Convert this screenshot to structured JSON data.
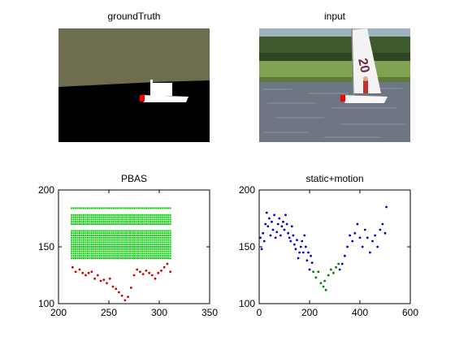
{
  "figure": {
    "panel_titles": [
      "groundTruth",
      "input",
      "PBAS",
      "static+motion"
    ]
  },
  "images": {
    "groundTruth": {
      "colors": {
        "sky": "#6e6d4f",
        "water": "#000000",
        "boat": "#ffffff",
        "marker": "#ff0000"
      }
    },
    "input": {
      "sail_text": "20",
      "colors": {
        "sky": "#9fb2c0",
        "trees": "#3e5a2c",
        "grass": "#7fa250",
        "water": "#6f7683",
        "marker": "#ff0000"
      }
    }
  },
  "chart_data": [
    {
      "type": "scatter",
      "title": "PBAS",
      "xlabel": "",
      "ylabel": "",
      "xlim": [
        200,
        350
      ],
      "ylim": [
        100,
        200
      ],
      "x_ticks": [
        200,
        250,
        300,
        350
      ],
      "y_ticks": [
        100,
        150,
        200
      ],
      "x_tick_labels": [
        "200",
        "250",
        "300",
        "350"
      ],
      "y_tick_labels": [
        "100",
        "150",
        "200"
      ],
      "grid": false,
      "colors": {
        "green": "#00d000",
        "red": "#d00000"
      },
      "band": {
        "x_from": 213,
        "x_to": 311,
        "x_step": 2,
        "y_rows": [
          140,
          142,
          144,
          146,
          148,
          150,
          152,
          154,
          156,
          158,
          160,
          162,
          164,
          170,
          172,
          174,
          176,
          178,
          184
        ]
      },
      "series": [
        {
          "color": "red",
          "x": [
            214,
            217,
            221,
            224,
            227,
            230,
            233,
            236,
            239,
            242,
            245,
            248,
            251,
            254,
            257,
            260,
            263,
            266,
            269,
            272,
            275,
            278,
            281,
            284,
            287,
            290,
            293,
            296,
            299,
            302,
            305,
            308,
            311
          ],
          "y": [
            132,
            128,
            130,
            127,
            125,
            127,
            128,
            122,
            125,
            120,
            121,
            118,
            122,
            115,
            113,
            110,
            107,
            103,
            106,
            114,
            125,
            130,
            128,
            126,
            129,
            127,
            125,
            122,
            127,
            129,
            132,
            135,
            128
          ]
        }
      ]
    },
    {
      "type": "scatter",
      "title": "static+motion",
      "xlabel": "",
      "ylabel": "",
      "xlim": [
        0,
        600
      ],
      "ylim": [
        100,
        200
      ],
      "x_ticks": [
        0,
        200,
        400,
        600
      ],
      "y_ticks": [
        100,
        150,
        200
      ],
      "x_tick_labels": [
        "0",
        "200",
        "400",
        "600"
      ],
      "y_tick_labels": [
        "100",
        "150",
        "200"
      ],
      "grid": false,
      "colors": {
        "blue": "#0000cc",
        "green": "#007a00"
      },
      "series": [
        {
          "color": "blue",
          "x": [
            5,
            10,
            15,
            20,
            25,
            30,
            35,
            40,
            45,
            50,
            55,
            60,
            65,
            70,
            75,
            80,
            85,
            90,
            95,
            100,
            105,
            110,
            115,
            120,
            125,
            130,
            135,
            140,
            145,
            150,
            155,
            160,
            165,
            170,
            175,
            180,
            185,
            190,
            195,
            200,
            205,
            210
          ],
          "y": [
            158,
            148,
            162,
            155,
            170,
            180,
            168,
            175,
            160,
            172,
            165,
            178,
            158,
            163,
            170,
            175,
            160,
            168,
            172,
            165,
            178,
            170,
            162,
            158,
            155,
            168,
            160,
            152,
            148,
            156,
            140,
            145,
            150,
            155,
            145,
            160,
            150,
            138,
            145,
            130,
            142,
            136
          ]
        },
        {
          "color": "blue",
          "x": [
            320,
            330,
            340,
            350,
            360,
            370,
            380,
            390,
            400,
            410,
            420,
            430,
            440,
            450,
            460,
            470,
            480,
            490,
            500,
            505
          ],
          "y": [
            130,
            135,
            142,
            150,
            160,
            155,
            162,
            170,
            158,
            150,
            165,
            158,
            145,
            155,
            160,
            150,
            165,
            170,
            162,
            185
          ]
        },
        {
          "color": "green",
          "x": [
            215,
            225,
            235,
            245,
            255,
            260,
            265,
            275,
            285,
            295,
            305,
            315
          ],
          "y": [
            128,
            123,
            128,
            118,
            115,
            120,
            112,
            125,
            130,
            127,
            132,
            135
          ]
        }
      ]
    }
  ]
}
